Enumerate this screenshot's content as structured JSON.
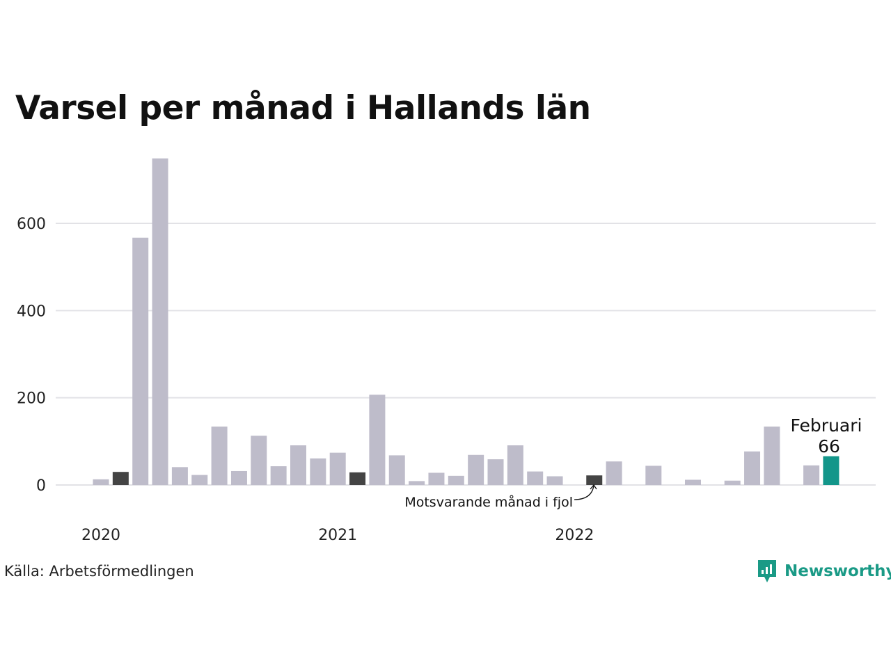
{
  "title": "Varsel per månad i Hallands län",
  "source": "Källa: Arbetsförmedlingen",
  "brand": "Newsworthy",
  "annotation": "Motsvarande månad i fjol",
  "highlight_label": "Februari",
  "highlight_value": "66",
  "colors": {
    "bar": "#bebcca",
    "same_month": "#444444",
    "current": "#13968a",
    "grid": "#e2e2e6",
    "brand": "#1a9a86"
  },
  "chart_data": {
    "type": "bar",
    "title": "Varsel per månad i Hallands län",
    "xlabel": "",
    "ylabel": "",
    "ylim": [
      0,
      750
    ],
    "yticks": [
      0,
      200,
      400,
      600
    ],
    "year_labels": [
      {
        "label": "2020",
        "month": "2020-01"
      },
      {
        "label": "2021",
        "month": "2021-01"
      },
      {
        "label": "2022",
        "month": "2022-01"
      }
    ],
    "grid": true,
    "categories": [
      "2020-01",
      "2020-02",
      "2020-03",
      "2020-04",
      "2020-05",
      "2020-06",
      "2020-07",
      "2020-08",
      "2020-09",
      "2020-10",
      "2020-11",
      "2020-12",
      "2021-01",
      "2021-02",
      "2021-03",
      "2021-04",
      "2021-05",
      "2021-06",
      "2021-07",
      "2021-08",
      "2021-09",
      "2021-10",
      "2021-11",
      "2021-12",
      "2022-01",
      "2022-02",
      "2022-03",
      "2022-04",
      "2022-05",
      "2022-06",
      "2022-07",
      "2022-08",
      "2022-09",
      "2022-10",
      "2022-11",
      "2022-12",
      "2023-01",
      "2023-02"
    ],
    "values": [
      13,
      30,
      567,
      749,
      41,
      23,
      134,
      32,
      113,
      43,
      91,
      61,
      74,
      29,
      207,
      68,
      9,
      28,
      21,
      69,
      59,
      91,
      31,
      20,
      0,
      22,
      54,
      0,
      44,
      0,
      12,
      0,
      10,
      77,
      134,
      0,
      45,
      66
    ],
    "same_month_last_years": [
      "2020-02",
      "2021-02",
      "2022-02"
    ],
    "current": "2023-02"
  }
}
